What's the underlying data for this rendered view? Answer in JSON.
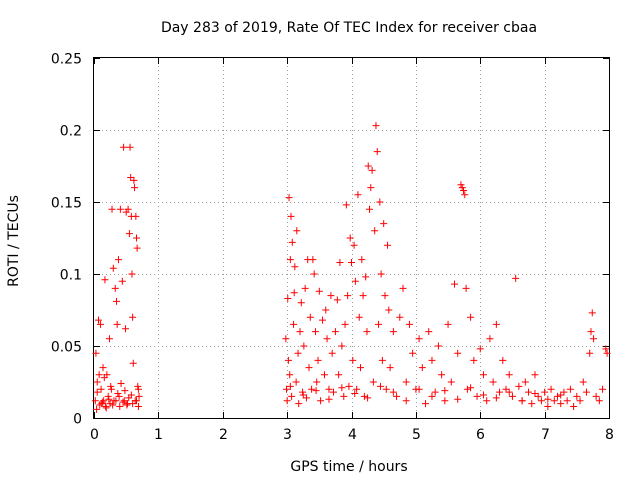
{
  "chart_data": {
    "type": "scatter",
    "title": "Day 283 of 2019, Rate Of TEC Index for receiver cbaa",
    "xlabel": "GPS time / hours",
    "ylabel": "ROTI / TECUs",
    "xlim": [
      0,
      8
    ],
    "ylim": [
      0,
      0.25
    ],
    "x_ticks": [
      "0",
      "1",
      "2",
      "3",
      "4",
      "5",
      "6",
      "7",
      "8"
    ],
    "y_ticks": [
      "0",
      "0.05",
      "0.1",
      "0.15",
      "0.2",
      "0.25"
    ],
    "grid": true,
    "marker": "+",
    "color": "#ff0000",
    "series": [
      {
        "name": "ROTI",
        "points": [
          [
            0.02,
            0.012
          ],
          [
            0.03,
            0.045
          ],
          [
            0.05,
            0.018
          ],
          [
            0.07,
            0.068
          ],
          [
            0.08,
            0.03
          ],
          [
            0.1,
            0.065
          ],
          [
            0.11,
            0.02
          ],
          [
            0.12,
            0.01
          ],
          [
            0.14,
            0.035
          ],
          [
            0.15,
            0.012
          ],
          [
            0.17,
            0.096
          ],
          [
            0.18,
            0.008
          ],
          [
            0.2,
            0.03
          ],
          [
            0.22,
            0.015
          ],
          [
            0.24,
            0.055
          ],
          [
            0.25,
            0.01
          ],
          [
            0.27,
            0.02
          ],
          [
            0.28,
            0.145
          ],
          [
            0.3,
            0.104
          ],
          [
            0.31,
            0.012
          ],
          [
            0.33,
            0.09
          ],
          [
            0.35,
            0.081
          ],
          [
            0.36,
            0.065
          ],
          [
            0.38,
            0.11
          ],
          [
            0.39,
            0.015
          ],
          [
            0.41,
            0.145
          ],
          [
            0.42,
            0.024
          ],
          [
            0.44,
            0.095
          ],
          [
            0.46,
            0.188
          ],
          [
            0.47,
            0.012
          ],
          [
            0.49,
            0.062
          ],
          [
            0.5,
            0.143
          ],
          [
            0.52,
            0.01
          ],
          [
            0.53,
            0.145
          ],
          [
            0.55,
            0.128
          ],
          [
            0.56,
            0.188
          ],
          [
            0.57,
            0.167
          ],
          [
            0.58,
            0.14
          ],
          [
            0.59,
            0.1
          ],
          [
            0.6,
            0.07
          ],
          [
            0.61,
            0.038
          ],
          [
            0.62,
            0.165
          ],
          [
            0.63,
            0.16
          ],
          [
            0.64,
            0.012
          ],
          [
            0.65,
            0.14
          ],
          [
            0.66,
            0.125
          ],
          [
            0.67,
            0.118
          ],
          [
            0.68,
            0.022
          ],
          [
            0.69,
            0.008
          ],
          [
            0.7,
            0.015
          ],
          [
            0.04,
            0.006
          ],
          [
            0.09,
            0.009
          ],
          [
            0.13,
            0.011
          ],
          [
            0.19,
            0.007
          ],
          [
            0.23,
            0.013
          ],
          [
            0.29,
            0.009
          ],
          [
            0.34,
            0.012
          ],
          [
            0.4,
            0.008
          ],
          [
            0.45,
            0.011
          ],
          [
            0.51,
            0.009
          ],
          [
            0.54,
            0.014
          ],
          [
            0.6,
            0.01
          ],
          [
            0.66,
            0.012
          ],
          [
            0.05,
            0.025
          ],
          [
            0.16,
            0.028
          ],
          [
            0.26,
            0.022
          ],
          [
            0.37,
            0.017
          ],
          [
            0.48,
            0.019
          ],
          [
            0.58,
            0.016
          ],
          [
            0.69,
            0.02
          ],
          [
            2.98,
            0.055
          ],
          [
            2.99,
            0.02
          ],
          [
            3.0,
            0.012
          ],
          [
            3.01,
            0.083
          ],
          [
            3.02,
            0.04
          ],
          [
            3.03,
            0.153
          ],
          [
            3.04,
            0.03
          ],
          [
            3.05,
            0.11
          ],
          [
            3.06,
            0.14
          ],
          [
            3.07,
            0.015
          ],
          [
            3.08,
            0.122
          ],
          [
            3.1,
            0.065
          ],
          [
            3.11,
            0.087
          ],
          [
            3.12,
            0.105
          ],
          [
            3.14,
            0.025
          ],
          [
            3.15,
            0.13
          ],
          [
            3.17,
            0.045
          ],
          [
            3.18,
            0.01
          ],
          [
            3.2,
            0.06
          ],
          [
            3.22,
            0.08
          ],
          [
            3.24,
            0.018
          ],
          [
            3.26,
            0.05
          ],
          [
            3.28,
            0.09
          ],
          [
            3.3,
            0.014
          ],
          [
            3.32,
            0.11
          ],
          [
            3.34,
            0.035
          ],
          [
            3.36,
            0.07
          ],
          [
            3.38,
            0.02
          ],
          [
            3.4,
            0.11
          ],
          [
            3.42,
            0.1
          ],
          [
            3.44,
            0.06
          ],
          [
            3.46,
            0.025
          ],
          [
            3.48,
            0.04
          ],
          [
            3.5,
            0.088
          ],
          [
            3.52,
            0.012
          ],
          [
            3.55,
            0.068
          ],
          [
            3.58,
            0.03
          ],
          [
            3.6,
            0.075
          ],
          [
            3.62,
            0.055
          ],
          [
            3.65,
            0.02
          ],
          [
            3.68,
            0.085
          ],
          [
            3.7,
            0.045
          ],
          [
            3.72,
            0.018
          ],
          [
            3.75,
            0.06
          ],
          [
            3.78,
            0.082
          ],
          [
            3.8,
            0.03
          ],
          [
            3.82,
            0.108
          ],
          [
            3.85,
            0.05
          ],
          [
            3.88,
            0.015
          ],
          [
            3.9,
            0.065
          ],
          [
            3.92,
            0.148
          ],
          [
            3.94,
            0.085
          ],
          [
            3.96,
            0.022
          ],
          [
            3.98,
            0.125
          ],
          [
            4.0,
            0.108
          ],
          [
            4.02,
            0.04
          ],
          [
            4.04,
            0.12
          ],
          [
            4.06,
            0.095
          ],
          [
            4.08,
            0.02
          ],
          [
            4.1,
            0.155
          ],
          [
            4.12,
            0.07
          ],
          [
            4.14,
            0.035
          ],
          [
            4.16,
            0.11
          ],
          [
            4.18,
            0.085
          ],
          [
            4.2,
            0.015
          ],
          [
            4.22,
            0.098
          ],
          [
            4.24,
            0.06
          ],
          [
            4.26,
            0.175
          ],
          [
            4.28,
            0.145
          ],
          [
            4.3,
            0.16
          ],
          [
            4.32,
            0.172
          ],
          [
            4.34,
            0.025
          ],
          [
            4.36,
            0.13
          ],
          [
            4.38,
            0.203
          ],
          [
            4.4,
            0.185
          ],
          [
            4.42,
            0.065
          ],
          [
            4.44,
            0.15
          ],
          [
            4.46,
            0.1
          ],
          [
            4.48,
            0.04
          ],
          [
            4.5,
            0.135
          ],
          [
            4.52,
            0.085
          ],
          [
            4.54,
            0.02
          ],
          [
            4.56,
            0.12
          ],
          [
            4.58,
            0.075
          ],
          [
            4.6,
            0.035
          ],
          [
            4.65,
            0.06
          ],
          [
            4.7,
            0.015
          ],
          [
            4.75,
            0.07
          ],
          [
            4.8,
            0.09
          ],
          [
            4.85,
            0.025
          ],
          [
            4.9,
            0.065
          ],
          [
            4.95,
            0.045
          ],
          [
            5.0,
            0.02
          ],
          [
            5.05,
            0.055
          ],
          [
            5.1,
            0.035
          ],
          [
            5.15,
            0.01
          ],
          [
            5.2,
            0.06
          ],
          [
            5.25,
            0.04
          ],
          [
            5.3,
            0.018
          ],
          [
            5.35,
            0.05
          ],
          [
            5.4,
            0.03
          ],
          [
            5.45,
            0.012
          ],
          [
            5.5,
            0.065
          ],
          [
            5.55,
            0.025
          ],
          [
            5.6,
            0.093
          ],
          [
            5.65,
            0.045
          ],
          [
            5.7,
            0.162
          ],
          [
            5.72,
            0.16
          ],
          [
            5.74,
            0.158
          ],
          [
            5.76,
            0.155
          ],
          [
            5.78,
            0.09
          ],
          [
            5.8,
            0.02
          ],
          [
            5.85,
            0.07
          ],
          [
            5.9,
            0.04
          ],
          [
            5.95,
            0.015
          ],
          [
            6.0,
            0.048
          ],
          [
            6.05,
            0.03
          ],
          [
            6.1,
            0.012
          ],
          [
            6.15,
            0.055
          ],
          [
            6.2,
            0.025
          ],
          [
            6.25,
            0.065
          ],
          [
            6.3,
            0.018
          ],
          [
            6.35,
            0.04
          ],
          [
            6.4,
            0.02
          ],
          [
            6.45,
            0.03
          ],
          [
            6.5,
            0.015
          ],
          [
            6.55,
            0.097
          ],
          [
            6.6,
            0.022
          ],
          [
            6.65,
            0.012
          ],
          [
            6.7,
            0.025
          ],
          [
            6.75,
            0.018
          ],
          [
            6.8,
            0.01
          ],
          [
            6.85,
            0.03
          ],
          [
            6.9,
            0.015
          ],
          [
            6.95,
            0.012
          ],
          [
            7.0,
            0.018
          ],
          [
            7.05,
            0.008
          ],
          [
            7.1,
            0.02
          ],
          [
            7.15,
            0.012
          ],
          [
            7.2,
            0.015
          ],
          [
            7.25,
            0.01
          ],
          [
            7.3,
            0.018
          ],
          [
            7.35,
            0.012
          ],
          [
            7.4,
            0.02
          ],
          [
            7.45,
            0.008
          ],
          [
            7.5,
            0.015
          ],
          [
            7.55,
            0.012
          ],
          [
            7.6,
            0.025
          ],
          [
            7.65,
            0.018
          ],
          [
            7.7,
            0.045
          ],
          [
            7.72,
            0.06
          ],
          [
            7.74,
            0.073
          ],
          [
            7.76,
            0.055
          ],
          [
            7.8,
            0.015
          ],
          [
            7.85,
            0.012
          ],
          [
            7.9,
            0.02
          ],
          [
            7.95,
            0.048
          ],
          [
            7.97,
            0.045
          ],
          [
            3.05,
            0.022
          ],
          [
            3.25,
            0.016
          ],
          [
            3.45,
            0.019
          ],
          [
            3.65,
            0.013
          ],
          [
            3.85,
            0.021
          ],
          [
            4.05,
            0.017
          ],
          [
            4.25,
            0.014
          ],
          [
            4.45,
            0.022
          ],
          [
            4.65,
            0.018
          ],
          [
            4.85,
            0.012
          ],
          [
            5.05,
            0.02
          ],
          [
            5.25,
            0.015
          ],
          [
            5.45,
            0.019
          ],
          [
            5.65,
            0.013
          ],
          [
            5.85,
            0.021
          ],
          [
            6.05,
            0.016
          ],
          [
            6.25,
            0.014
          ],
          [
            6.45,
            0.018
          ],
          [
            6.65,
            0.012
          ],
          [
            6.85,
            0.017
          ],
          [
            7.05,
            0.013
          ],
          [
            7.25,
            0.016
          ]
        ]
      }
    ]
  }
}
